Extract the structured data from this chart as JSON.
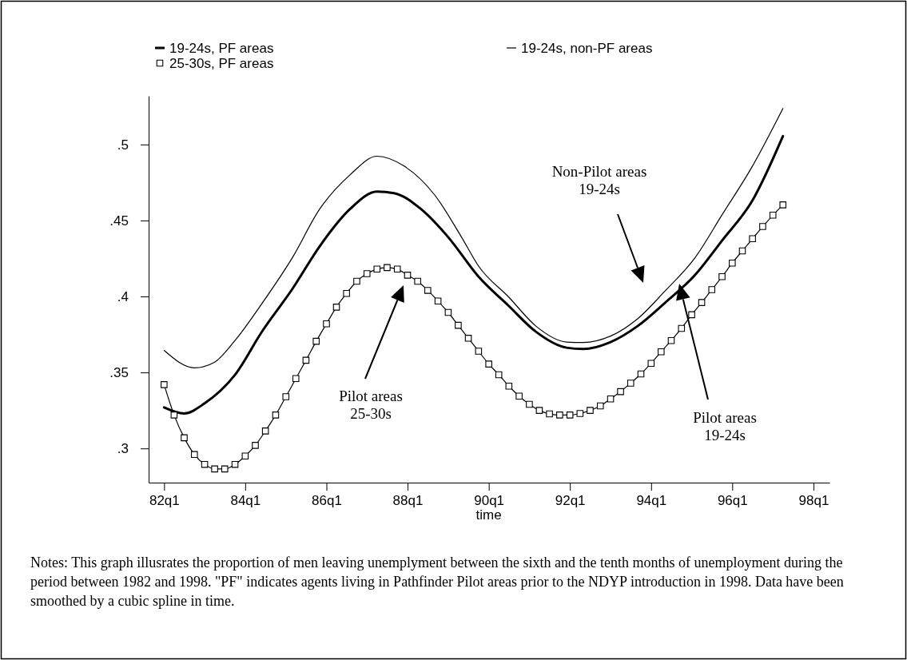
{
  "chart_data": {
    "type": "line",
    "xlabel": "time",
    "xlim": [
      "1981-08-15",
      "1998-05-25"
    ],
    "ylim": [
      0.2775,
      0.532
    ],
    "xticks": [
      {
        "value": "1982-01",
        "label": "82q1"
      },
      {
        "value": "1984-01",
        "label": "84q1"
      },
      {
        "value": "1986-01",
        "label": "86q1"
      },
      {
        "value": "1988-01",
        "label": "88q1"
      },
      {
        "value": "1990-01",
        "label": "90q1"
      },
      {
        "value": "1992-01",
        "label": "92q1"
      },
      {
        "value": "1994-01",
        "label": "94q1"
      },
      {
        "value": "1996-01",
        "label": "96q1"
      },
      {
        "value": "1998-01",
        "label": "98q1"
      }
    ],
    "yticks": [
      {
        "value": 0.3,
        "label": ".3"
      },
      {
        "value": 0.35,
        "label": ".35"
      },
      {
        "value": 0.4,
        "label": ".4"
      },
      {
        "value": 0.45,
        "label": ".45"
      },
      {
        "value": 0.5,
        "label": ".5"
      }
    ],
    "legend": "top",
    "grid": false,
    "series": [
      {
        "name": "19-24s, PF areas",
        "color": "#000000",
        "marker": "none",
        "x": [
          "1982-01",
          "1982-07",
          "1983-01",
          "1983-10",
          "1984-06",
          "1985-03",
          "1985-11",
          "1986-08",
          "1987-04",
          "1987-09",
          "1988-05",
          "1989-01",
          "1989-10",
          "1990-07",
          "1991-03",
          "1991-12",
          "1992-05",
          "1993-01",
          "1993-09",
          "1994-05",
          "1995-02",
          "1995-10",
          "1996-07",
          "1997-04"
        ],
        "values": [
          0.327,
          0.323,
          0.3297,
          0.3484,
          0.377,
          0.405,
          0.433,
          0.4575,
          0.469,
          0.468,
          0.4575,
          0.439,
          0.413,
          0.3937,
          0.3768,
          0.3663,
          0.3654,
          0.37,
          0.3805,
          0.3955,
          0.4142,
          0.4368,
          0.4632,
          0.5055
        ]
      },
      {
        "name": "19-24s, non-PF areas",
        "color": "#000000",
        "marker": "none",
        "x": [
          "1982-01",
          "1982-10",
          "1983-04",
          "1983-10",
          "1984-06",
          "1985-03",
          "1985-11",
          "1986-08",
          "1987-04",
          "1987-12",
          "1988-09",
          "1989-05",
          "1989-10",
          "1990-07",
          "1991-03",
          "1991-12",
          "1992-05",
          "1993-01",
          "1993-09",
          "1994-05",
          "1995-02",
          "1995-10",
          "1996-07",
          "1997-04"
        ],
        "values": [
          0.3645,
          0.353,
          0.3568,
          0.371,
          0.3955,
          0.4256,
          0.4575,
          0.48,
          0.4923,
          0.4858,
          0.4668,
          0.439,
          0.42,
          0.3995,
          0.3805,
          0.37,
          0.3697,
          0.3739,
          0.3853,
          0.4032,
          0.4256,
          0.4537,
          0.4858,
          0.5237
        ]
      },
      {
        "name": "25-30s, PF areas",
        "color": "#000000",
        "marker": "square",
        "x": [
          "1982-01",
          "1982-04",
          "1982-07",
          "1982-10",
          "1983-01",
          "1983-04",
          "1983-07",
          "1983-10",
          "1984-01",
          "1984-04",
          "1984-07",
          "1984-10",
          "1985-01",
          "1985-04",
          "1985-07",
          "1985-10",
          "1986-01",
          "1986-04",
          "1986-07",
          "1986-10",
          "1987-01",
          "1987-04",
          "1987-07",
          "1987-10",
          "1988-01",
          "1988-04",
          "1988-07",
          "1988-10",
          "1989-01",
          "1989-04",
          "1989-07",
          "1989-10",
          "1990-01",
          "1990-04",
          "1990-07",
          "1990-10",
          "1991-01",
          "1991-04",
          "1991-07",
          "1991-10",
          "1992-01",
          "1992-04",
          "1992-07",
          "1992-10",
          "1993-01",
          "1993-04",
          "1993-07",
          "1993-10",
          "1994-01",
          "1994-04",
          "1994-07",
          "1994-10",
          "1995-01",
          "1995-04",
          "1995-07",
          "1995-10",
          "1996-01",
          "1996-04",
          "1996-07",
          "1996-10",
          "1997-01",
          "1997-04"
        ],
        "values": [
          0.342,
          0.322,
          0.307,
          0.296,
          0.2895,
          0.2865,
          0.2865,
          0.2895,
          0.295,
          0.302,
          0.3115,
          0.322,
          0.334,
          0.346,
          0.358,
          0.3705,
          0.382,
          0.393,
          0.402,
          0.41,
          0.415,
          0.418,
          0.419,
          0.418,
          0.414,
          0.41,
          0.404,
          0.397,
          0.3895,
          0.381,
          0.3725,
          0.364,
          0.3555,
          0.3485,
          0.341,
          0.3344,
          0.329,
          0.325,
          0.3227,
          0.322,
          0.322,
          0.323,
          0.325,
          0.328,
          0.3326,
          0.3374,
          0.343,
          0.349,
          0.356,
          0.3636,
          0.371,
          0.379,
          0.388,
          0.396,
          0.4045,
          0.413,
          0.422,
          0.43,
          0.438,
          0.446,
          0.4535,
          0.4603
        ]
      }
    ],
    "annotations": [
      "Non-Pilot areas\n19-24s",
      "Pilot areas\n25-30s",
      "Pilot areas\n19-24s",
      "Notes: This graph illusrates the proportion of men leaving unemplyment between the sixth and the tenth months of unemployment during the period between 1982 and 1998. \"PF\" indicates agents living in Pathfinder Pilot areas prior to the NDYP introduction in 1998. Data have been smoothed by a cubic spline in time."
    ]
  }
}
